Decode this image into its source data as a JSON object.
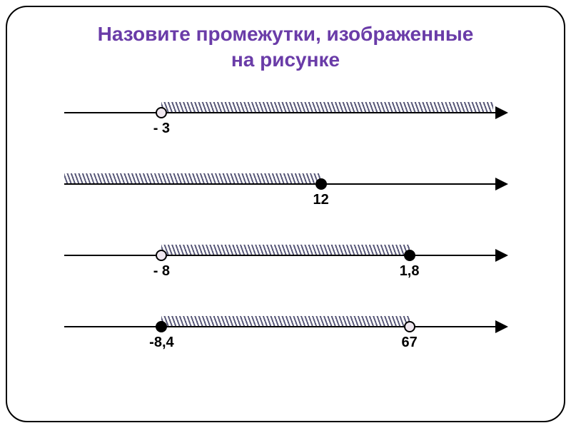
{
  "title_line1": "Назовите промежутки, изображенные",
  "title_line2": "на рисунке",
  "title_color": "#6a3ca8",
  "axis_color": "#000000",
  "hatch_color": "#5a5a7a",
  "open_point_fill": "#f0e8f0",
  "closed_point_fill": "#000000",
  "point_border": "#000000",
  "label_color": "#000000",
  "label_fontsize": 20,
  "title_fontsize": 28,
  "lines": [
    {
      "id": "line1",
      "hatch_start_pct": 22,
      "hatch_end_pct": 97,
      "points": [
        {
          "pos_pct": 22,
          "type": "open",
          "label": "- 3"
        }
      ]
    },
    {
      "id": "line2",
      "hatch_start_pct": 0,
      "hatch_end_pct": 58,
      "points": [
        {
          "pos_pct": 58,
          "type": "closed",
          "label": "12"
        }
      ]
    },
    {
      "id": "line3",
      "hatch_start_pct": 22,
      "hatch_end_pct": 78,
      "points": [
        {
          "pos_pct": 22,
          "type": "open",
          "label": "- 8"
        },
        {
          "pos_pct": 78,
          "type": "closed",
          "label": "1,8"
        }
      ]
    },
    {
      "id": "line4",
      "hatch_start_pct": 22,
      "hatch_end_pct": 78,
      "points": [
        {
          "pos_pct": 22,
          "type": "closed",
          "label": "-8,4"
        },
        {
          "pos_pct": 78,
          "type": "open",
          "label": "67"
        }
      ]
    }
  ]
}
